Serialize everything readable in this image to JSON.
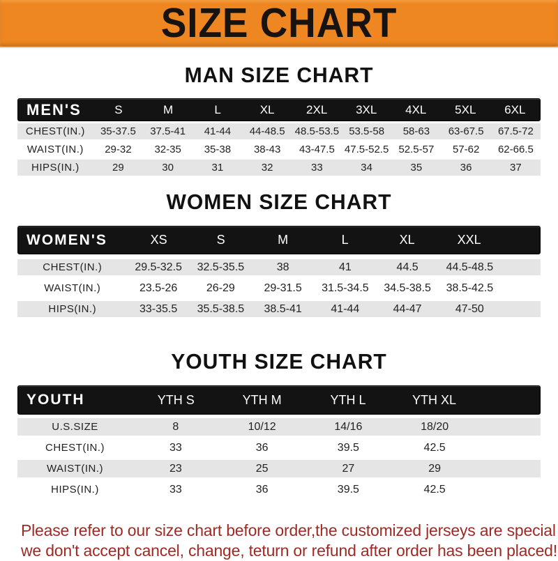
{
  "banner": {
    "title": "SIZE CHART"
  },
  "colors": {
    "banner_orange": "#ee8621",
    "bar_black": "#131313",
    "row_gray": "#e5e5e5",
    "note_red": "#9e2a23"
  },
  "sections": [
    {
      "id": "men",
      "heading": "MAN SIZE CHART",
      "table": {
        "header_label": "MEN'S",
        "columns": [
          "S",
          "M",
          "L",
          "XL",
          "2XL",
          "3XL",
          "4XL",
          "5XL",
          "6XL"
        ],
        "rows": [
          {
            "label": "CHEST(IN.)",
            "values": [
              "35-37.5",
              "37.5-41",
              "41-44",
              "44-48.5",
              "48.5-53.5",
              "53.5-58",
              "58-63",
              "63-67.5",
              "67.5-72"
            ]
          },
          {
            "label": "WAIST(IN.)",
            "values": [
              "29-32",
              "32-35",
              "35-38",
              "38-43",
              "43-47.5",
              "47.5-52.5",
              "52.5-57",
              "57-62",
              "62-66.5"
            ]
          },
          {
            "label": "HIPS(IN.)",
            "values": [
              "29",
              "30",
              "31",
              "32",
              "33",
              "34",
              "35",
              "36",
              "37"
            ]
          }
        ]
      }
    },
    {
      "id": "women",
      "heading": "WOMEN SIZE CHART",
      "table": {
        "header_label": "WOMEN'S",
        "columns": [
          "XS",
          "S",
          "M",
          "L",
          "XL",
          "XXL"
        ],
        "rows": [
          {
            "label": "CHEST(IN.)",
            "values": [
              "29.5-32.5",
              "32.5-35.5",
              "38",
              "41",
              "44.5",
              "44.5-48.5"
            ]
          },
          {
            "label": "WAIST(IN.)",
            "values": [
              "23.5-26",
              "26-29",
              "29-31.5",
              "31.5-34.5",
              "34.5-38.5",
              "38.5-42.5"
            ]
          },
          {
            "label": "HIPS(IN.)",
            "values": [
              "33-35.5",
              "35.5-38.5",
              "38.5-41",
              "41-44",
              "44-47",
              "47-50"
            ]
          }
        ]
      }
    },
    {
      "id": "youth",
      "heading": "YOUTH SIZE CHART",
      "table": {
        "header_label": "YOUTH",
        "columns": [
          "YTH S",
          "YTH M",
          "YTH L",
          "YTH XL"
        ],
        "rows": [
          {
            "label": "U.S.SIZE",
            "values": [
              "8",
              "10/12",
              "14/16",
              "18/20"
            ]
          },
          {
            "label": "CHEST(IN.)",
            "values": [
              "33",
              "36",
              "39.5",
              "42.5"
            ]
          },
          {
            "label": "WAIST(IN.)",
            "values": [
              "23",
              "25",
              "27",
              "29"
            ]
          },
          {
            "label": "HIPS(IN.)",
            "values": [
              "33",
              "36",
              "39.5",
              "42.5"
            ]
          }
        ]
      }
    }
  ],
  "disclaimer": {
    "line1": "Please refer to our size chart before order,the customized jerseys are special products,",
    "line2": "we don't accept cancel, change, teturn or refund after order has been placed!"
  }
}
